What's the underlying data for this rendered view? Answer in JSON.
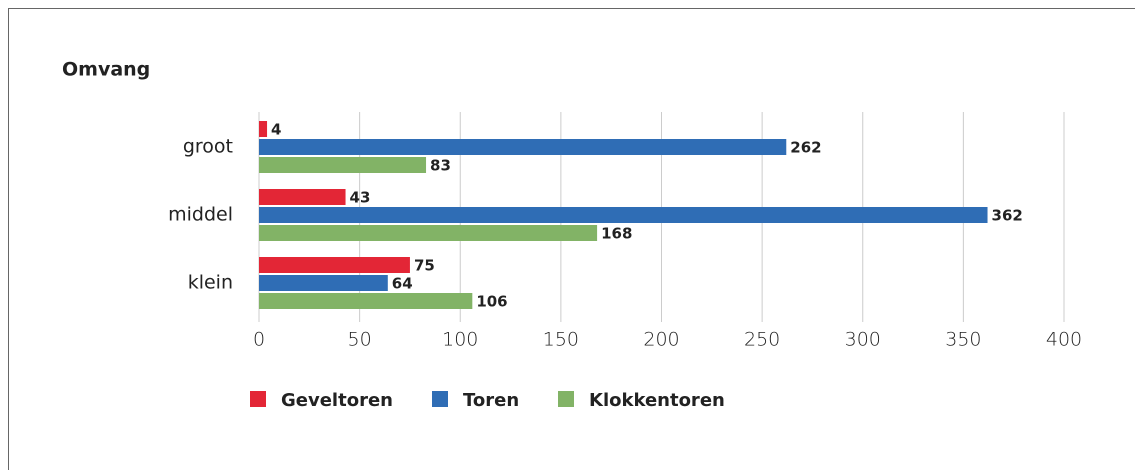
{
  "chart_data": {
    "type": "hbar",
    "title": "Omvang",
    "categories": [
      "groot",
      "middel",
      "klein"
    ],
    "series": [
      {
        "name": "Geveltoren",
        "color": "#e32636",
        "values": [
          4,
          43,
          75
        ]
      },
      {
        "name": "Toren",
        "color": "#2f6db5",
        "values": [
          262,
          362,
          64
        ]
      },
      {
        "name": "Klokkentoren",
        "color": "#82b366",
        "values": [
          83,
          168,
          106
        ]
      }
    ],
    "xlim": [
      0,
      400
    ],
    "xticks": [
      0,
      50,
      100,
      150,
      200,
      250,
      300,
      350,
      400
    ],
    "grid": true,
    "legend": "bottom"
  }
}
